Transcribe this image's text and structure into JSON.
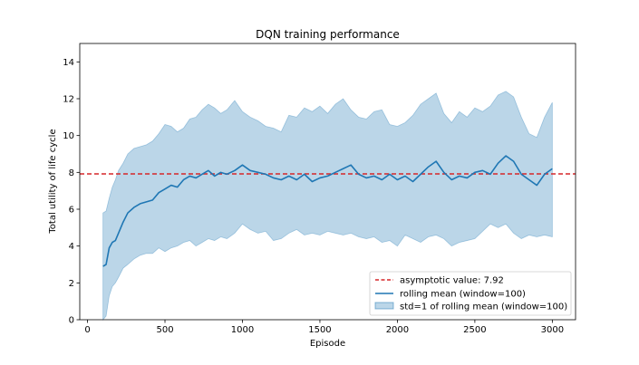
{
  "chart_data": {
    "type": "line",
    "title": "DQN training performance",
    "xlabel": "Episode",
    "ylabel": "Total utility of life cycle",
    "xlim": [
      -50,
      3150
    ],
    "ylim": [
      0,
      15
    ],
    "xticks": [
      0,
      500,
      1000,
      1500,
      2000,
      2500,
      3000
    ],
    "yticks": [
      0,
      2,
      4,
      6,
      8,
      10,
      12,
      14
    ],
    "grid": false,
    "legend_position": "lower-right",
    "asymptote": {
      "name": "asymptotic value: 7.92",
      "value": 7.92,
      "color": "#d62728"
    },
    "rolling_mean": {
      "name": "rolling mean (window=100)",
      "color": "#1f77b4",
      "x": [
        100,
        120,
        140,
        160,
        180,
        200,
        230,
        260,
        300,
        340,
        380,
        420,
        460,
        500,
        540,
        580,
        620,
        660,
        700,
        740,
        780,
        820,
        860,
        900,
        950,
        1000,
        1050,
        1100,
        1150,
        1200,
        1250,
        1300,
        1350,
        1400,
        1450,
        1500,
        1550,
        1600,
        1650,
        1700,
        1750,
        1800,
        1850,
        1900,
        1950,
        2000,
        2050,
        2100,
        2150,
        2200,
        2250,
        2300,
        2350,
        2400,
        2450,
        2500,
        2550,
        2600,
        2650,
        2700,
        2750,
        2800,
        2850,
        2900,
        2950,
        3000
      ],
      "values": [
        2.9,
        3.0,
        3.9,
        4.2,
        4.3,
        4.7,
        5.3,
        5.8,
        6.1,
        6.3,
        6.4,
        6.5,
        6.9,
        7.1,
        7.3,
        7.2,
        7.6,
        7.8,
        7.7,
        7.9,
        8.1,
        7.8,
        8.0,
        7.9,
        8.1,
        8.4,
        8.1,
        8.0,
        7.9,
        7.7,
        7.6,
        7.8,
        7.6,
        7.9,
        7.5,
        7.7,
        7.8,
        8.0,
        8.2,
        8.4,
        7.9,
        7.7,
        7.8,
        7.6,
        7.9,
        7.6,
        7.8,
        7.5,
        7.9,
        8.3,
        8.6,
        8.0,
        7.6,
        7.8,
        7.7,
        8.0,
        8.1,
        7.9,
        8.5,
        8.9,
        8.6,
        7.9,
        7.6,
        7.3,
        7.9,
        8.2
      ]
    },
    "std_band": {
      "name": "std=1 of rolling mean (window=100)",
      "color": "#1f77b4",
      "x": [
        100,
        120,
        140,
        160,
        180,
        200,
        230,
        260,
        300,
        340,
        380,
        420,
        460,
        500,
        540,
        580,
        620,
        660,
        700,
        740,
        780,
        820,
        860,
        900,
        950,
        1000,
        1050,
        1100,
        1150,
        1200,
        1250,
        1300,
        1350,
        1400,
        1450,
        1500,
        1550,
        1600,
        1650,
        1700,
        1750,
        1800,
        1850,
        1900,
        1950,
        2000,
        2050,
        2100,
        2150,
        2200,
        2250,
        2300,
        2350,
        2400,
        2450,
        2500,
        2550,
        2600,
        2650,
        2700,
        2750,
        2800,
        2850,
        2900,
        2950,
        3000
      ],
      "upper": [
        5.8,
        5.9,
        6.6,
        7.2,
        7.6,
        8.1,
        8.5,
        9.0,
        9.3,
        9.4,
        9.5,
        9.7,
        10.1,
        10.6,
        10.5,
        10.2,
        10.4,
        10.9,
        11.0,
        11.4,
        11.7,
        11.5,
        11.2,
        11.4,
        11.9,
        11.3,
        11.0,
        10.8,
        10.5,
        10.4,
        10.2,
        11.1,
        11.0,
        11.5,
        11.3,
        11.6,
        11.2,
        11.7,
        12.0,
        11.4,
        11.0,
        10.9,
        11.3,
        11.4,
        10.6,
        10.5,
        10.7,
        11.1,
        11.7,
        12.0,
        12.3,
        11.2,
        10.7,
        11.3,
        11.0,
        11.5,
        11.3,
        11.6,
        12.2,
        12.4,
        12.1,
        11.0,
        10.1,
        9.9,
        11.0,
        11.8
      ],
      "lower": [
        0.0,
        0.2,
        1.3,
        1.8,
        2.0,
        2.3,
        2.8,
        3.0,
        3.3,
        3.5,
        3.6,
        3.6,
        3.9,
        3.7,
        3.9,
        4.0,
        4.2,
        4.3,
        4.0,
        4.2,
        4.4,
        4.3,
        4.5,
        4.4,
        4.7,
        5.2,
        4.9,
        4.7,
        4.8,
        4.3,
        4.4,
        4.7,
        4.9,
        4.6,
        4.7,
        4.6,
        4.8,
        4.7,
        4.6,
        4.7,
        4.5,
        4.4,
        4.5,
        4.2,
        4.3,
        4.0,
        4.6,
        4.4,
        4.2,
        4.5,
        4.6,
        4.4,
        4.0,
        4.2,
        4.3,
        4.4,
        4.8,
        5.2,
        5.0,
        5.2,
        4.7,
        4.4,
        4.6,
        4.5,
        4.6,
        4.5
      ]
    }
  }
}
